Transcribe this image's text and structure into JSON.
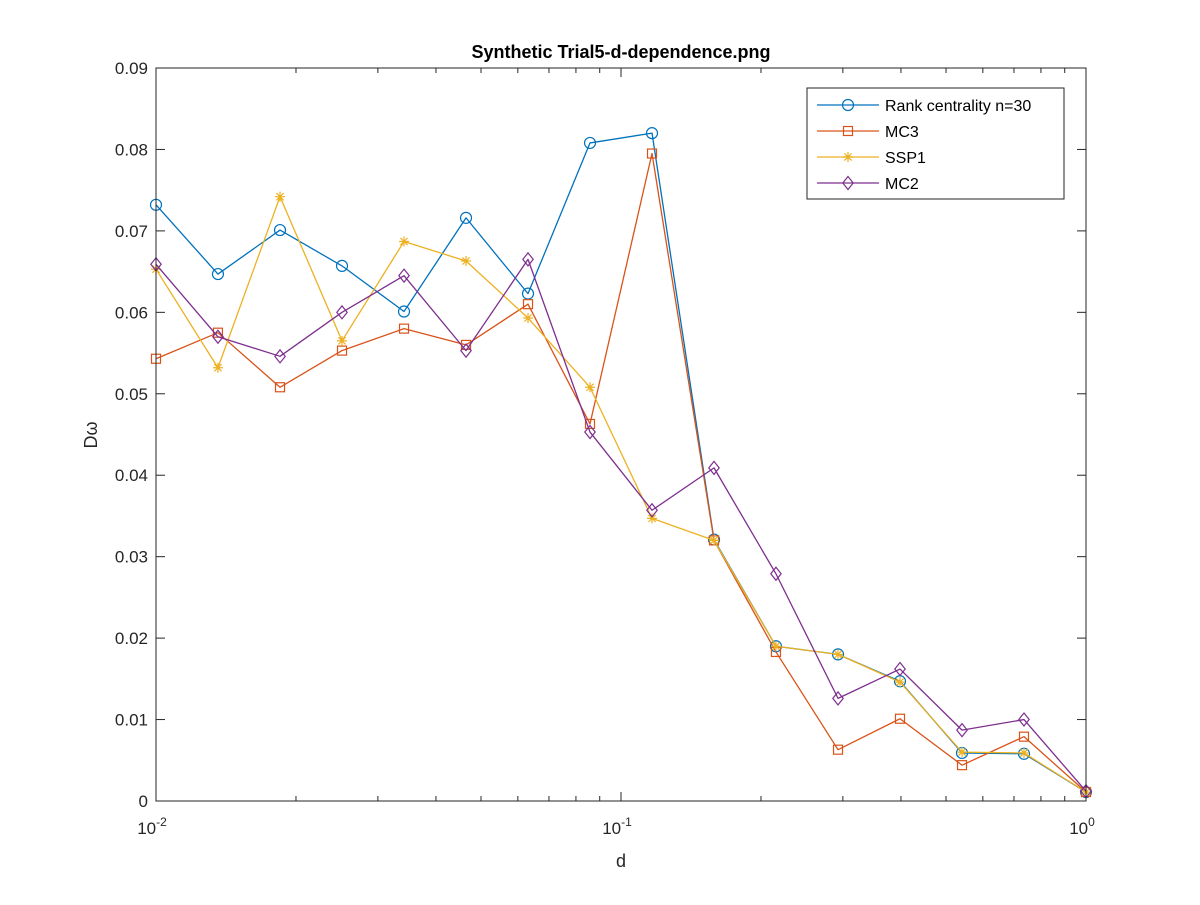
{
  "chart_data": {
    "type": "line",
    "title": "Synthetic Trial5-d-dependence.png",
    "xlabel": "d",
    "ylabel": "Dω",
    "xscale": "log",
    "xlim": [
      0.01,
      1
    ],
    "ylim": [
      0,
      0.09
    ],
    "xticks": [
      {
        "value": 0.01,
        "base": "10",
        "exp": "-2"
      },
      {
        "value": 0.1,
        "base": "10",
        "exp": "-1"
      },
      {
        "value": 1,
        "base": "10",
        "exp": "0"
      }
    ],
    "yticks": [
      {
        "value": 0,
        "label": "0"
      },
      {
        "value": 0.01,
        "label": "0.01"
      },
      {
        "value": 0.02,
        "label": "0.02"
      },
      {
        "value": 0.03,
        "label": "0.03"
      },
      {
        "value": 0.04,
        "label": "0.04"
      },
      {
        "value": 0.05,
        "label": "0.05"
      },
      {
        "value": 0.06,
        "label": "0.06"
      },
      {
        "value": 0.07,
        "label": "0.07"
      },
      {
        "value": 0.08,
        "label": "0.08"
      },
      {
        "value": 0.09,
        "label": "0.09"
      }
    ],
    "grid": false,
    "legend_position": "top-right",
    "x": [
      0.01,
      0.01359,
      0.01848,
      0.02512,
      0.03415,
      0.04642,
      0.0631,
      0.08577,
      0.1166,
      0.1585,
      0.2154,
      0.2929,
      0.3981,
      0.5412,
      0.7356,
      1.0
    ],
    "series": [
      {
        "name": "Rank centrality n=30",
        "color": "#0072BD",
        "marker": "circle",
        "values": [
          0.0732,
          0.0647,
          0.0701,
          0.0657,
          0.0601,
          0.0716,
          0.0623,
          0.0808,
          0.082,
          0.0321,
          0.019,
          0.018,
          0.0147,
          0.0059,
          0.0058,
          0.0011
        ]
      },
      {
        "name": "MC3",
        "color": "#D95319",
        "marker": "square",
        "values": [
          0.0543,
          0.0575,
          0.0508,
          0.0553,
          0.058,
          0.056,
          0.061,
          0.0463,
          0.0795,
          0.032,
          0.0183,
          0.0063,
          0.0101,
          0.0044,
          0.0079,
          0.0011
        ]
      },
      {
        "name": "SSP1",
        "color": "#EDB120",
        "marker": "asterisk",
        "values": [
          0.0653,
          0.0532,
          0.0742,
          0.0565,
          0.0687,
          0.0663,
          0.0593,
          0.0508,
          0.0347,
          0.032,
          0.019,
          0.018,
          0.0146,
          0.006,
          0.0059,
          0.0011
        ]
      },
      {
        "name": "MC2",
        "color": "#7E2F8E",
        "marker": "diamond",
        "values": [
          0.0659,
          0.057,
          0.0546,
          0.06,
          0.0645,
          0.0553,
          0.0665,
          0.0453,
          0.0357,
          0.0409,
          0.0279,
          0.0126,
          0.0162,
          0.0087,
          0.01,
          0.0012
        ]
      }
    ]
  }
}
